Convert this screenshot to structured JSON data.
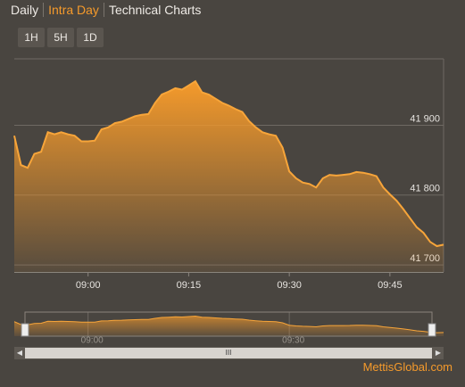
{
  "tabs": [
    "Daily",
    "Intra Day",
    "Technical Charts"
  ],
  "active_tab": 1,
  "range_buttons": [
    "1H",
    "5H",
    "1D"
  ],
  "credits": "MettisGlobal.com",
  "chart_data": {
    "type": "area",
    "color": "#f7a53a",
    "x": [
      "08:49",
      "08:50",
      "08:51",
      "08:52",
      "08:53",
      "08:54",
      "08:55",
      "08:56",
      "08:57",
      "08:58",
      "08:59",
      "09:00",
      "09:01",
      "09:02",
      "09:03",
      "09:04",
      "09:05",
      "09:06",
      "09:07",
      "09:08",
      "09:09",
      "09:10",
      "09:11",
      "09:12",
      "09:13",
      "09:14",
      "09:15",
      "09:16",
      "09:17",
      "09:18",
      "09:19",
      "09:20",
      "09:21",
      "09:22",
      "09:23",
      "09:24",
      "09:25",
      "09:26",
      "09:27",
      "09:28",
      "09:29",
      "09:30",
      "09:31",
      "09:32",
      "09:33",
      "09:34",
      "09:35",
      "09:36",
      "09:37",
      "09:38",
      "09:39",
      "09:40",
      "09:41",
      "09:42",
      "09:43",
      "09:44",
      "09:45",
      "09:46",
      "09:47",
      "09:48",
      "09:49",
      "09:50",
      "09:51",
      "09:52",
      "09:53"
    ],
    "values": [
      41885,
      41843,
      41839,
      41859,
      41862,
      41890,
      41887,
      41890,
      41887,
      41885,
      41877,
      41877,
      41878,
      41894,
      41897,
      41903,
      41905,
      41909,
      41913,
      41915,
      41916,
      41932,
      41944,
      41948,
      41953,
      41951,
      41957,
      41963,
      41947,
      41944,
      41938,
      41932,
      41928,
      41923,
      41919,
      41906,
      41897,
      41890,
      41887,
      41885,
      41868,
      41834,
      41824,
      41818,
      41816,
      41811,
      41824,
      41829,
      41828,
      41829,
      41830,
      41833,
      41832,
      41830,
      41827,
      41811,
      41801,
      41792,
      41780,
      41767,
      41754,
      41746,
      41733,
      41727,
      41729
    ],
    "xlim": [
      "08:49",
      "09:53"
    ],
    "xticks": [
      "09:00",
      "09:15",
      "09:30",
      "09:45"
    ],
    "ylim": [
      41690,
      41995
    ],
    "yticks": [
      {
        "value": 41700,
        "label": "41 700"
      },
      {
        "value": 41800,
        "label": "41 800"
      },
      {
        "value": 41900,
        "label": "41 900"
      }
    ],
    "grid": true
  }
}
